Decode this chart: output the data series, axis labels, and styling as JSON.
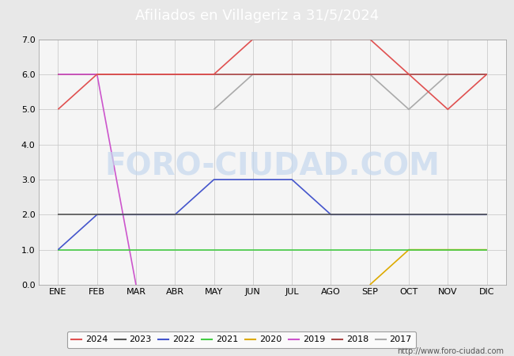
{
  "title": "Afiliados en Villageriz a 31/5/2024",
  "title_bg_color": "#5b9bd5",
  "title_text_color": "white",
  "ylim": [
    0.0,
    7.0
  ],
  "yticks": [
    0.0,
    1.0,
    2.0,
    3.0,
    4.0,
    5.0,
    6.0,
    7.0
  ],
  "months": [
    "ENE",
    "FEB",
    "MAR",
    "ABR",
    "MAY",
    "JUN",
    "JUL",
    "AGO",
    "SEP",
    "OCT",
    "NOV",
    "DIC"
  ],
  "month_indices": [
    1,
    2,
    3,
    4,
    5,
    6,
    7,
    8,
    9,
    10,
    11,
    12
  ],
  "watermark_plot": "FORO-CIUDAD.COM",
  "watermark_url": "http://www.foro-ciudad.com",
  "series": {
    "2024": {
      "color": "#e05050",
      "data": [
        [
          1,
          5
        ],
        [
          2,
          6
        ],
        [
          5,
          6
        ],
        [
          6,
          7
        ],
        [
          7,
          7
        ],
        [
          9,
          7
        ],
        [
          10,
          6
        ],
        [
          11,
          5
        ],
        [
          12,
          6
        ]
      ]
    },
    "2023": {
      "color": "#555555",
      "data": [
        [
          1,
          2
        ],
        [
          12,
          2
        ]
      ]
    },
    "2022": {
      "color": "#4455cc",
      "data": [
        [
          1,
          1
        ],
        [
          2,
          2
        ],
        [
          4,
          2
        ],
        [
          5,
          3
        ],
        [
          6,
          3
        ],
        [
          7,
          3
        ],
        [
          8,
          2
        ],
        [
          9,
          2
        ],
        [
          12,
          2
        ]
      ]
    },
    "2021": {
      "color": "#44cc44",
      "data": [
        [
          1,
          1
        ],
        [
          12,
          1
        ]
      ]
    },
    "2020": {
      "color": "#ddaa00",
      "data": [
        [
          9,
          0
        ],
        [
          10,
          1
        ],
        [
          12,
          1
        ]
      ]
    },
    "2019": {
      "color": "#cc55cc",
      "data": [
        [
          1,
          6
        ],
        [
          2,
          6
        ],
        [
          3,
          0
        ]
      ]
    },
    "2018": {
      "color": "#aa4444",
      "data": [
        [
          1,
          6
        ],
        [
          12,
          6
        ]
      ]
    },
    "2017": {
      "color": "#aaaaaa",
      "data": [
        [
          5,
          5
        ],
        [
          6,
          6
        ],
        [
          9,
          6
        ],
        [
          10,
          5
        ],
        [
          11,
          6
        ],
        [
          12,
          6
        ]
      ]
    }
  },
  "legend_order": [
    "2024",
    "2023",
    "2022",
    "2021",
    "2020",
    "2019",
    "2018",
    "2017"
  ],
  "bg_color": "#e8e8e8",
  "plot_bg_color": "#f5f5f5",
  "grid_color": "#cccccc",
  "font_size_title": 13,
  "font_size_ticks": 8,
  "font_size_legend": 8,
  "font_size_watermark_url": 7,
  "font_size_watermark_plot": 28
}
